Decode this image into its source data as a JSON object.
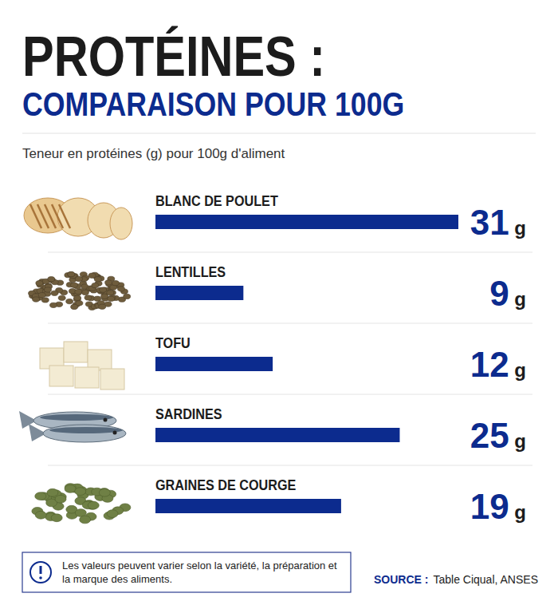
{
  "chart_data": {
    "type": "bar",
    "orientation": "horizontal",
    "title": "PROTÉINES :",
    "subtitle": "COMPARAISON POUR 100G",
    "x_label": "Teneur en protéines (g) pour 100g d'aliment",
    "categories": [
      "BLANC DE POULET",
      "LENTILLES",
      "TOFU",
      "SARDINES",
      "GRAINES DE COURGE"
    ],
    "values": [
      31,
      9,
      12,
      25,
      19
    ],
    "value_labels": [
      "31 g",
      "9 g",
      "12 g",
      "25 g",
      "19 g"
    ],
    "data_labels": true,
    "color": "#0c2b8e",
    "xlim": [
      0,
      31
    ],
    "tick_labels": false,
    "grid": false,
    "note": "Les valeurs peuvent varier selon la variété, la préparation et la marque des aliments.",
    "source": {
      "label": "SOURCE :",
      "text": "Table Ciqual, ANSES"
    }
  }
}
